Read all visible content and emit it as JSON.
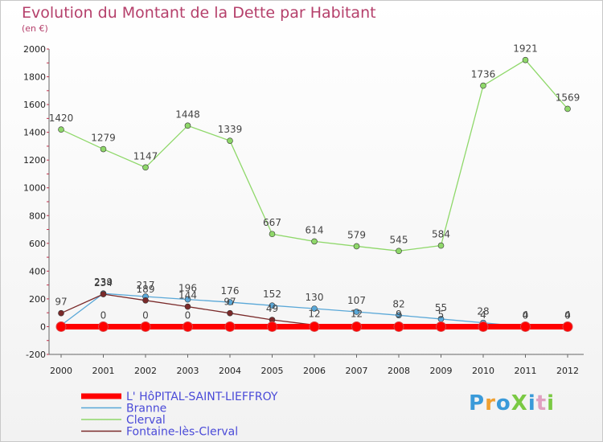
{
  "title": "Evolution du Montant de la Dette par Habitant",
  "unit": "(en €)",
  "logo": "ProXiti",
  "colors": {
    "hopital": "#ff0000",
    "branne": "#5aa8d8",
    "clerval": "#8fd86a",
    "fontaine": "#7a2a2a",
    "logo": [
      "#3a9ad9",
      "#f0a030",
      "#3a9ad9",
      "#7ac943",
      "#3a9ad9",
      "#e0a0c0",
      "#7ac943"
    ]
  },
  "chart_data": {
    "type": "line",
    "x": [
      "2000",
      "2001",
      "2002",
      "2003",
      "2004",
      "2005",
      "2006",
      "2007",
      "2008",
      "2009",
      "2010",
      "2011",
      "2012"
    ],
    "ylim": [
      -200,
      2000
    ],
    "yticks": [
      -200,
      0,
      200,
      400,
      600,
      800,
      1000,
      1200,
      1400,
      1600,
      1800,
      2000
    ],
    "series": [
      {
        "name": "L' HôPITAL-SAINT-LIEFFROY",
        "key": "hopital",
        "values": [
          0,
          0,
          0,
          0,
          0,
          0,
          0,
          0,
          0,
          0,
          0,
          0,
          0
        ],
        "labels": [
          "",
          "0",
          "0",
          "0",
          "",
          "",
          "",
          "",
          "",
          "",
          "",
          "",
          ""
        ]
      },
      {
        "name": "Branne",
        "key": "branne",
        "values": [
          10,
          239,
          217,
          196,
          176,
          152,
          130,
          107,
          82,
          55,
          28,
          0,
          0
        ],
        "labels": [
          "",
          "239",
          "217",
          "196",
          "176",
          "152",
          "130",
          "107",
          "82",
          "55",
          "28",
          "0",
          "0"
        ]
      },
      {
        "name": "Clerval",
        "key": "clerval",
        "values": [
          1420,
          1279,
          1147,
          1448,
          1339,
          667,
          614,
          579,
          545,
          584,
          1736,
          1921,
          1569
        ],
        "labels": [
          "1420",
          "1279",
          "1147",
          "1448",
          "1339",
          "667",
          "614",
          "579",
          "545",
          "584",
          "1736",
          "1921",
          "1569"
        ]
      },
      {
        "name": "Fontaine-lès-Clerval",
        "key": "fontaine",
        "values": [
          97,
          234,
          189,
          144,
          97,
          49,
          12,
          12,
          9,
          5,
          4,
          4,
          4
        ],
        "labels": [
          "97",
          "234",
          "189",
          "144",
          "97",
          "49",
          "12",
          "12",
          "9",
          "5",
          "4",
          "4",
          "4"
        ]
      }
    ]
  }
}
